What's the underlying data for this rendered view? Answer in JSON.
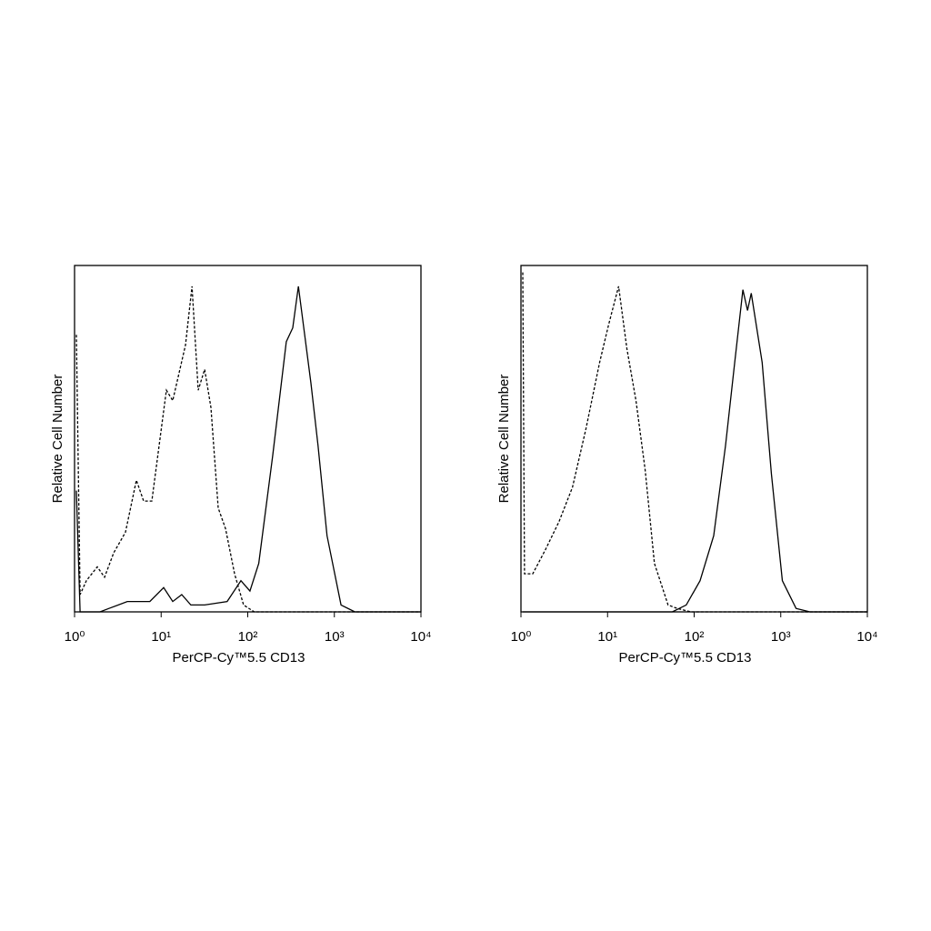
{
  "chart_data": [
    {
      "type": "line",
      "xlabel": "PerCP-Cy™5.5 CD13",
      "ylabel": "Relative Cell Number",
      "xscale": "log",
      "xlim": [
        1,
        10000
      ],
      "ylim": [
        0,
        100
      ],
      "xticks": [
        {
          "value": 1,
          "label": "10⁰"
        },
        {
          "value": 10,
          "label": "10¹"
        },
        {
          "value": 100,
          "label": "10²"
        },
        {
          "value": 1000,
          "label": "10³"
        },
        {
          "value": 10000,
          "label": "10⁴"
        }
      ],
      "series": [
        {
          "color": "#000000",
          "style": "dashed",
          "x": [
            1.05,
            1.16,
            1.37,
            1.83,
            2.22,
            2.83,
            3.87,
            5.17,
            6.28,
            7.8,
            9.47,
            11.5,
            13.6,
            16.1,
            19.1,
            22.7,
            26.8,
            31.8,
            37.6,
            45.6,
            55.4,
            70.4,
            89.5,
            119,
            10000
          ],
          "values": [
            80,
            5,
            9,
            13,
            10,
            17,
            23,
            38,
            32,
            32,
            48,
            64,
            61,
            69,
            77,
            94,
            64,
            70,
            59,
            30,
            24,
            11,
            2,
            0,
            0
          ]
        },
        {
          "color": "#000000",
          "style": "solid",
          "x": [
            1.05,
            1.16,
            1.97,
            2.5,
            4.06,
            7.4,
            10.7,
            13.6,
            17.3,
            22,
            31.8,
            57.7,
            83.5,
            106,
            134,
            194,
            279,
            331,
            384,
            454,
            536,
            648,
            824,
            1193,
            1726,
            10000
          ],
          "values": [
            35,
            0,
            0,
            1,
            3,
            3,
            7,
            3,
            5,
            2,
            2,
            3,
            9,
            6,
            14,
            45,
            78,
            82,
            94,
            80,
            66,
            48,
            22,
            2,
            0,
            0
          ]
        }
      ]
    },
    {
      "type": "line",
      "xlabel": "PerCP-Cy™5.5 CD13",
      "ylabel": "Relative Cell Number",
      "xscale": "log",
      "xlim": [
        1,
        10000
      ],
      "ylim": [
        0,
        100
      ],
      "xticks": [
        {
          "value": 1,
          "label": "10⁰"
        },
        {
          "value": 10,
          "label": "10¹"
        },
        {
          "value": 100,
          "label": "10²"
        },
        {
          "value": 1000,
          "label": "10³"
        },
        {
          "value": 10000,
          "label": "10⁴"
        }
      ],
      "series": [
        {
          "color": "#000000",
          "style": "dashed",
          "x": [
            1.05,
            1.1,
            1.37,
            1.92,
            2.75,
            3.94,
            5.64,
            8.1,
            10.3,
            13.4,
            16.7,
            21.3,
            27.2,
            34.8,
            50,
            63.7,
            91.7,
            10000
          ],
          "values": [
            98,
            11,
            11,
            18,
            26,
            36,
            53,
            72,
            83,
            94,
            76,
            61,
            41,
            14,
            2,
            1,
            0,
            0
          ]
        },
        {
          "color": "#000000",
          "style": "solid",
          "x": [
            1.05,
            56,
            81,
            117,
            168,
            230,
            294,
            365,
            413,
            456,
            610,
            779,
            1042,
            1501,
            2162,
            10000
          ],
          "values": [
            0,
            0,
            2,
            9,
            22,
            48,
            72,
            93,
            87,
            92,
            72,
            40,
            9,
            1,
            0,
            0
          ]
        }
      ]
    }
  ]
}
